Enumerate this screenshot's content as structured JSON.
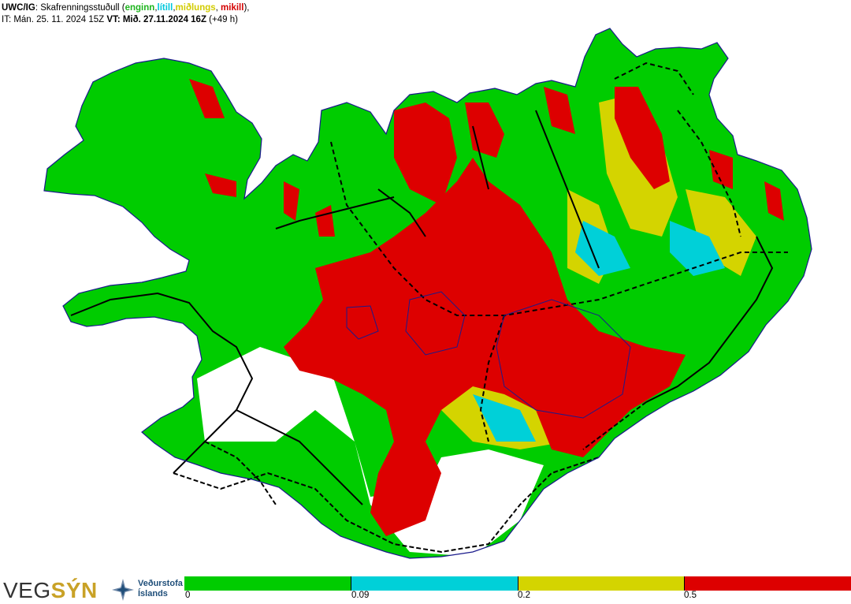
{
  "header": {
    "line1_prefix": "UWC/IG",
    "line1_label": ": Skafrenningsstuðull (",
    "cat_none": "enginn",
    "cat_low": "lítill",
    "cat_mid": "miðlungs",
    "cat_high": "mikill",
    "line1_suffix": "),",
    "line2_it": "IT: Mán. 25. 11. 2024 15Z ",
    "line2_vt_label": "VT",
    "line2_vt_value": ": Mið. 27.11.2024 16Z",
    "line2_offset": " (+49 h)"
  },
  "colors": {
    "none": "#00cc00",
    "low": "#00d0d8",
    "mid": "#d4d400",
    "high": "#dd0000",
    "road": "#000000",
    "coast": "#1a1a8c"
  },
  "logos": {
    "vegsyn_a": "VEG",
    "vegsyn_b": "SÝN",
    "vedurstofa_line1": "Veðurstofa",
    "vedurstofa_line2": "Íslands"
  },
  "legend": {
    "ticks": [
      "0",
      "0.09",
      "0.2",
      "0.5"
    ]
  }
}
